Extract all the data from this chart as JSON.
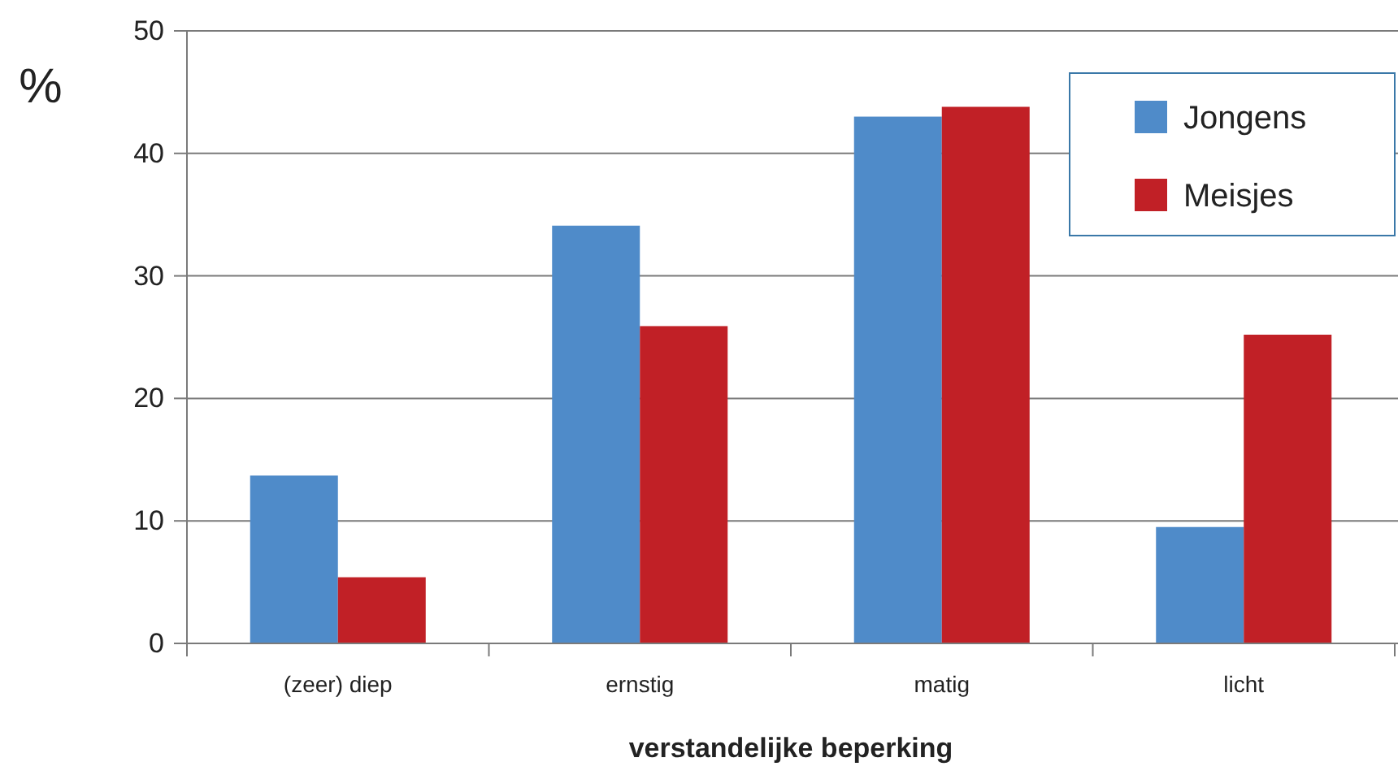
{
  "chart_data": {
    "type": "bar",
    "xlabel": "verstandelijke beperking",
    "ylabel": "%",
    "categories": [
      "(zeer) diep",
      "ernstig",
      "matig",
      "licht"
    ],
    "series": [
      {
        "name": "Jongens",
        "color": "#4f8bc9",
        "values": [
          13.7,
          34.1,
          43.0,
          9.5
        ]
      },
      {
        "name": "Meisjes",
        "color": "#c12026",
        "values": [
          5.4,
          25.9,
          43.8,
          25.2
        ]
      }
    ],
    "ylim": [
      0,
      50
    ],
    "yticks": [
      0,
      10,
      20,
      30,
      40,
      50
    ],
    "grid": "y",
    "legend": "top right"
  }
}
